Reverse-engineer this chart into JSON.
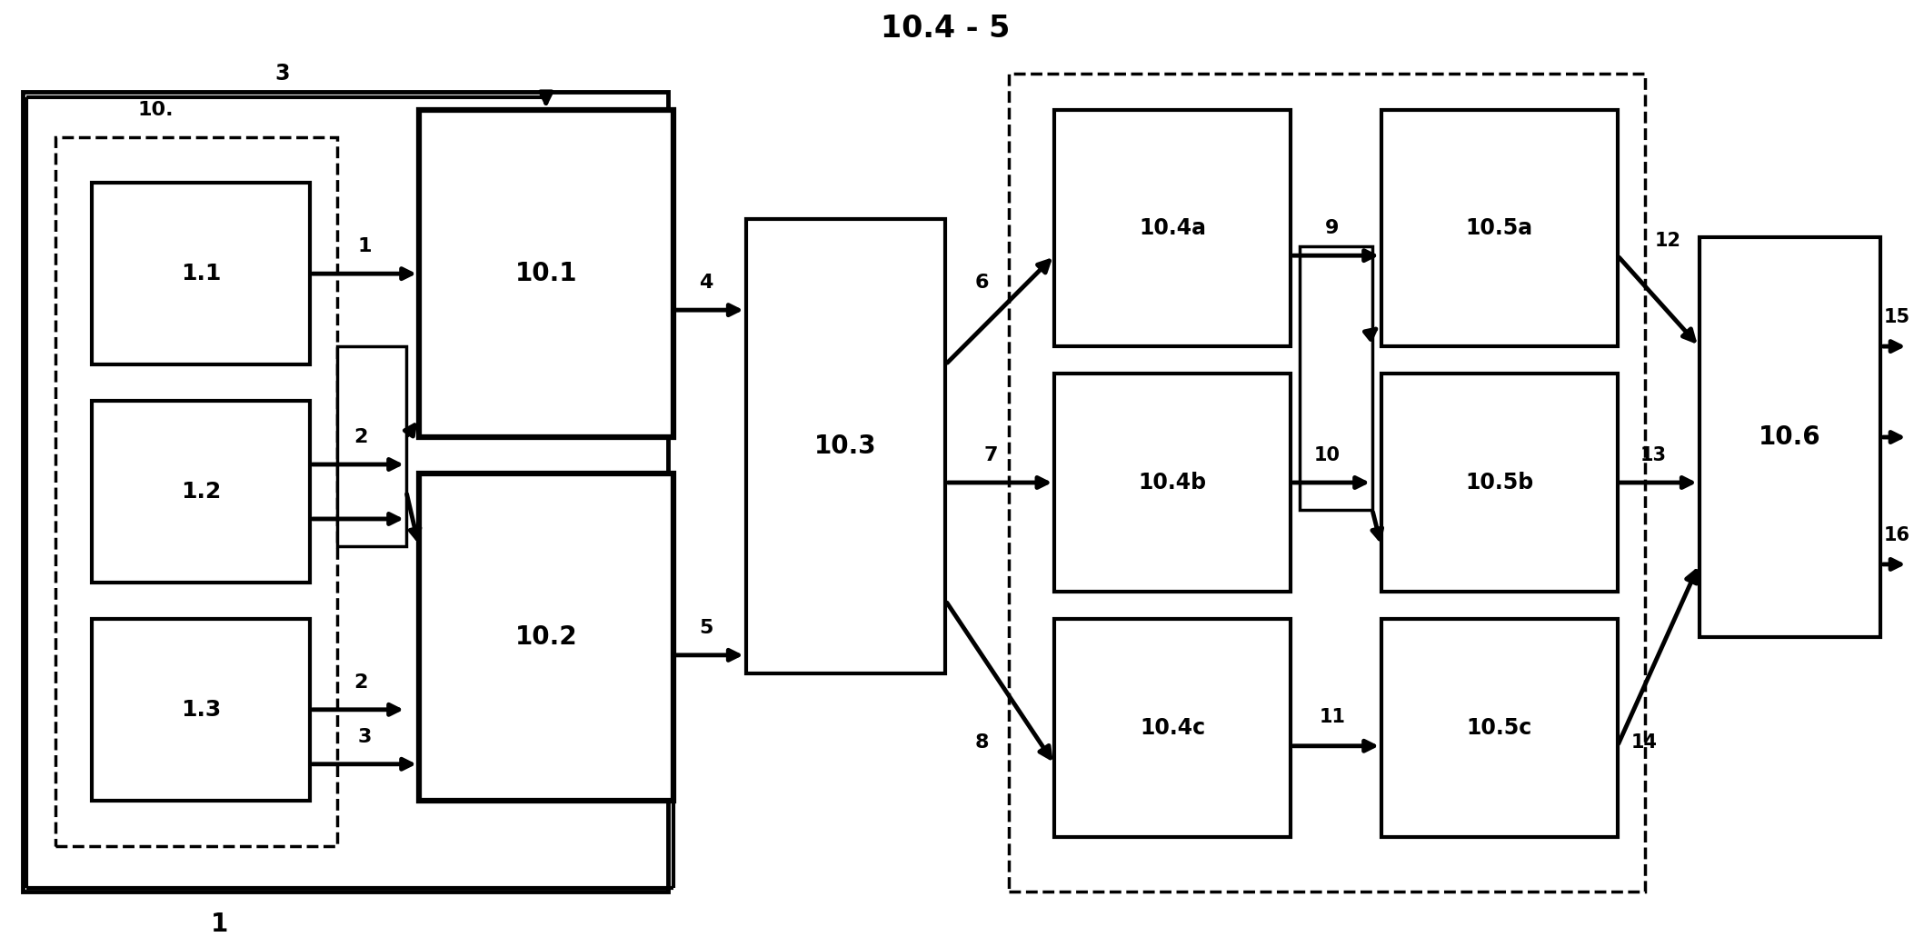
{
  "title": "10.4 - 5",
  "figsize": [
    21.06,
    10.42
  ],
  "dpi": 100,
  "xlim": [
    0,
    10.5
  ],
  "ylim": [
    0,
    5.0
  ]
}
